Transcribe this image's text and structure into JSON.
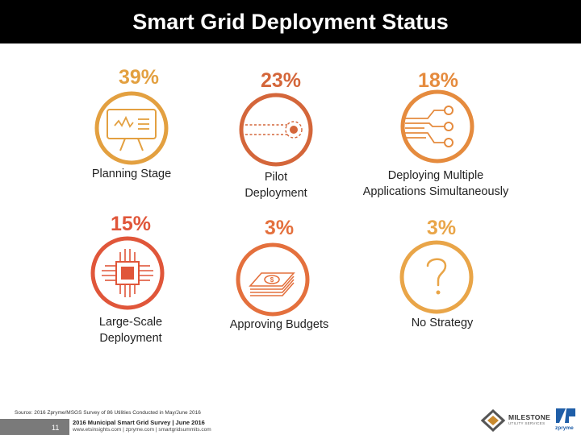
{
  "title": "Smart Grid Deployment Status",
  "stats": [
    {
      "percent": "39%",
      "label_lines": [
        "Planning Stage"
      ],
      "color": "#E3A040",
      "icon": "presentation-board-icon"
    },
    {
      "percent": "23%",
      "label_lines": [
        "Pilot",
        "Deployment"
      ],
      "color": "#D4663A",
      "icon": "pilot-target-icon"
    },
    {
      "percent": "18%",
      "label_lines": [
        "Deploying Multiple",
        "Applications Simultaneously"
      ],
      "color": "#E58B3E",
      "icon": "circuit-branches-icon"
    },
    {
      "percent": "15%",
      "label_lines": [
        "Large-Scale",
        "Deployment"
      ],
      "color": "#E0563A",
      "icon": "microchip-icon"
    },
    {
      "percent": "3%",
      "label_lines": [
        "Approving Budgets"
      ],
      "color": "#E4703D",
      "icon": "money-stack-icon"
    },
    {
      "percent": "3%",
      "label_lines": [
        "No Strategy"
      ],
      "color": "#E9A548",
      "icon": "question-mark-icon"
    }
  ],
  "source": "Source: 2016 Zpryme/MSGS Survey of 86 Utilities Conducted in May/June 2016",
  "footer": {
    "slide_number": "11",
    "title": "2016 Municipal Smart Grid Survey | June 2016",
    "links": "www.etsinsights.com | zpryme.com | smartgridsummits.com"
  },
  "logos": {
    "milestone_name": "MILESTONE",
    "milestone_sub": "UTILITY SERVICES",
    "zpryme_name": "zpryme"
  }
}
